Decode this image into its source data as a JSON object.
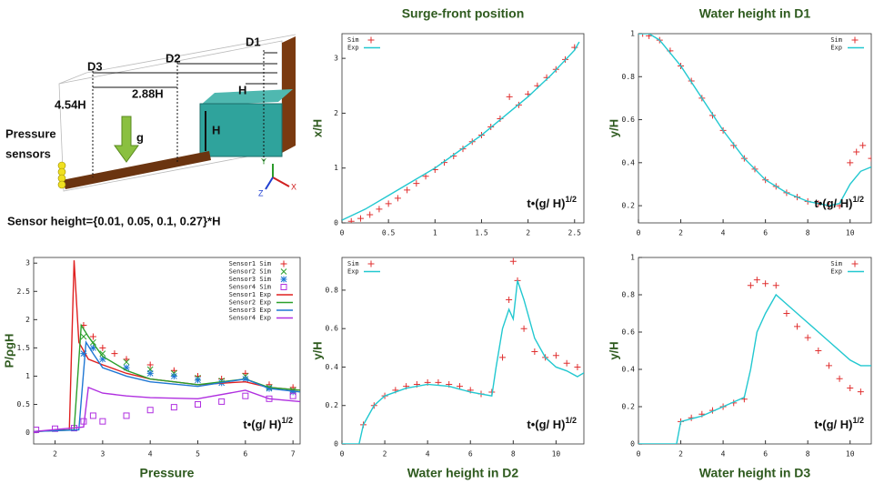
{
  "diagram": {
    "labels": {
      "d1": "D1",
      "d2": "D2",
      "d3": "D3",
      "h_top": "H",
      "d2_dist": "2.88H",
      "d3_dist": "4.54H",
      "g": "g",
      "h_block": "H",
      "sensors": [
        "Pressure",
        "sensors"
      ],
      "axis_y": "Y",
      "axis_z": "Z",
      "axis_x": "X",
      "sensor_height": "Sensor height={0.01, 0.05, 0.1, 0.27}*H"
    }
  },
  "chart_data": [
    {
      "type": "line",
      "title": "Surge-front position",
      "ylabel": "x/H",
      "annotation": "t•(g/ H)",
      "annotation_sup": "1/2",
      "legend": "upper left",
      "xlim": [
        0,
        2.6
      ],
      "ylim": [
        0,
        3.45
      ],
      "xticks": [
        0,
        0.5,
        1,
        1.5,
        2,
        2.5
      ],
      "yticks": [
        0,
        1,
        2,
        3
      ],
      "series": [
        {
          "name": "Sim",
          "color": "#e03030",
          "marker": "+",
          "x": [
            0.1,
            0.2,
            0.3,
            0.4,
            0.5,
            0.6,
            0.7,
            0.8,
            0.9,
            1.0,
            1.1,
            1.2,
            1.3,
            1.4,
            1.5,
            1.6,
            1.7,
            1.8,
            1.9,
            2.0,
            2.1,
            2.2,
            2.3,
            2.4,
            2.5
          ],
          "values": [
            0.03,
            0.08,
            0.15,
            0.25,
            0.35,
            0.45,
            0.6,
            0.72,
            0.85,
            0.97,
            1.1,
            1.22,
            1.35,
            1.48,
            1.6,
            1.75,
            1.9,
            2.3,
            2.15,
            2.35,
            2.5,
            2.65,
            2.8,
            2.98,
            3.2
          ]
        },
        {
          "name": "Exp",
          "color": "#22c8d0",
          "x": [
            0,
            0.25,
            0.5,
            0.75,
            1,
            1.25,
            1.5,
            1.75,
            2,
            2.25,
            2.5,
            2.55
          ],
          "values": [
            0.05,
            0.25,
            0.5,
            0.75,
            1.0,
            1.3,
            1.6,
            1.95,
            2.3,
            2.7,
            3.15,
            3.3
          ]
        }
      ]
    },
    {
      "type": "line",
      "title": "Water height in D1",
      "ylabel": "y/H",
      "annotation": "t•(g/ H)",
      "annotation_sup": "1/2",
      "legend": "upper right",
      "xlim": [
        0,
        11
      ],
      "ylim": [
        0.12,
        1
      ],
      "xticks": [
        0,
        2,
        4,
        6,
        8,
        10
      ],
      "yticks": [
        0.2,
        0.4,
        0.6,
        0.8,
        1
      ],
      "series": [
        {
          "name": "Sim",
          "color": "#e03030",
          "marker": "+",
          "x": [
            0.2,
            0.5,
            1,
            1.5,
            2,
            2.5,
            3,
            3.5,
            4,
            4.5,
            5,
            5.5,
            6,
            6.5,
            7,
            7.5,
            8,
            8.5,
            9,
            9.5,
            10,
            10.3,
            10.6,
            11
          ],
          "values": [
            1,
            0.99,
            0.97,
            0.92,
            0.85,
            0.78,
            0.7,
            0.62,
            0.55,
            0.48,
            0.42,
            0.37,
            0.32,
            0.29,
            0.26,
            0.24,
            0.22,
            0.21,
            0.2,
            0.2,
            0.4,
            0.45,
            0.48,
            0.42
          ]
        },
        {
          "name": "Exp",
          "color": "#22c8d0",
          "x": [
            0,
            0.5,
            1,
            2,
            3,
            4,
            5,
            6,
            7,
            8,
            9,
            9.5,
            10,
            10.5,
            11
          ],
          "values": [
            1,
            1,
            0.97,
            0.85,
            0.7,
            0.55,
            0.42,
            0.32,
            0.26,
            0.22,
            0.2,
            0.21,
            0.3,
            0.36,
            0.38
          ]
        }
      ]
    },
    {
      "type": "line",
      "title": "Pressure",
      "ylabel": "P/ρgH",
      "annotation": "t•(g/ H)",
      "annotation_sup": "1/2",
      "legend": "upper right",
      "xlim": [
        1.55,
        7.15
      ],
      "ylim": [
        -0.2,
        3.1
      ],
      "xticks": [
        2,
        3,
        4,
        5,
        6,
        7
      ],
      "yticks": [
        0,
        0.5,
        1,
        1.5,
        2,
        2.5,
        3
      ],
      "series": [
        {
          "name": "Sensor1 Sim",
          "color": "#e02020",
          "marker": "+",
          "x": [
            2.6,
            2.8,
            3,
            3.25,
            3.5,
            4,
            4.5,
            5,
            5.5,
            6,
            6.5,
            7
          ],
          "values": [
            1.9,
            1.7,
            1.5,
            1.4,
            1.3,
            1.2,
            1.1,
            1.0,
            0.95,
            1.05,
            0.85,
            0.8
          ]
        },
        {
          "name": "Sensor2 Sim",
          "color": "#2ca02c",
          "marker": "x",
          "x": [
            2.6,
            2.8,
            3,
            3.5,
            4,
            4.5,
            5,
            5.5,
            6,
            6.5,
            7
          ],
          "values": [
            1.7,
            1.6,
            1.4,
            1.25,
            1.12,
            1.05,
            0.97,
            0.92,
            1.0,
            0.8,
            0.75
          ]
        },
        {
          "name": "Sensor3 Sim",
          "color": "#1f77d4",
          "marker": "*",
          "x": [
            2.6,
            2.8,
            3,
            3.5,
            4,
            4.5,
            5,
            5.5,
            6,
            6.5,
            7
          ],
          "values": [
            1.4,
            1.5,
            1.3,
            1.15,
            1.05,
            1.0,
            0.93,
            0.88,
            0.95,
            0.78,
            0.72
          ]
        },
        {
          "name": "Sensor4 Sim",
          "color": "#b030e0",
          "marker": "square",
          "x": [
            1.6,
            2,
            2.4,
            2.6,
            2.8,
            3,
            3.5,
            4,
            4.5,
            5,
            5.5,
            6,
            6.5,
            7
          ],
          "values": [
            0.05,
            0.07,
            0.08,
            0.2,
            0.3,
            0.2,
            0.3,
            0.4,
            0.45,
            0.5,
            0.55,
            0.65,
            0.6,
            0.65
          ]
        },
        {
          "name": "Sensor1 Exp",
          "color": "#e02020",
          "x": [
            1.55,
            2.3,
            2.4,
            2.5,
            2.7,
            3,
            3.5,
            4,
            5,
            6,
            6.5,
            7.15
          ],
          "values": [
            0.02,
            0.05,
            3.05,
            1.6,
            1.3,
            1.2,
            1.05,
            0.95,
            0.85,
            0.9,
            0.8,
            0.75
          ]
        },
        {
          "name": "Sensor2 Exp",
          "color": "#2ca02c",
          "x": [
            1.55,
            2.4,
            2.55,
            2.7,
            3,
            3.5,
            4,
            5,
            6,
            6.5,
            7.15
          ],
          "values": [
            0.02,
            0.05,
            1.9,
            1.7,
            1.35,
            1.1,
            0.95,
            0.85,
            0.95,
            0.8,
            0.75
          ]
        },
        {
          "name": "Sensor3 Exp",
          "color": "#1f77d4",
          "x": [
            1.55,
            2.5,
            2.65,
            2.8,
            3,
            3.5,
            4,
            5,
            6,
            6.5,
            7.15
          ],
          "values": [
            0.02,
            0.05,
            1.6,
            1.4,
            1.15,
            1.0,
            0.9,
            0.82,
            0.95,
            0.78,
            0.72
          ]
        },
        {
          "name": "Sensor4 Exp",
          "color": "#b030e0",
          "x": [
            1.55,
            2.6,
            2.7,
            3,
            3.5,
            4,
            5,
            6,
            6.5,
            7.15
          ],
          "values": [
            0.02,
            0.1,
            0.8,
            0.7,
            0.65,
            0.62,
            0.6,
            0.75,
            0.6,
            0.55
          ]
        }
      ]
    },
    {
      "type": "line",
      "title": "Water height in D2",
      "ylabel": "y/H",
      "annotation": "t•(g/ H)",
      "annotation_sup": "1/2",
      "legend": "upper left",
      "xlim": [
        0,
        11.3
      ],
      "ylim": [
        0,
        0.97
      ],
      "xticks": [
        0,
        2,
        4,
        6,
        8,
        10
      ],
      "yticks": [
        0,
        0.2,
        0.4,
        0.6,
        0.8
      ],
      "series": [
        {
          "name": "Sim",
          "color": "#e03030",
          "marker": "+",
          "x": [
            1,
            1.5,
            2,
            2.5,
            3,
            3.5,
            4,
            4.5,
            5,
            5.5,
            6,
            6.5,
            7,
            7.5,
            7.8,
            8,
            8.2,
            8.5,
            9,
            9.5,
            10,
            10.5,
            11
          ],
          "values": [
            0.1,
            0.2,
            0.25,
            0.28,
            0.3,
            0.31,
            0.32,
            0.32,
            0.31,
            0.3,
            0.28,
            0.26,
            0.27,
            0.45,
            0.75,
            0.95,
            0.85,
            0.6,
            0.48,
            0.45,
            0.46,
            0.42,
            0.4
          ]
        },
        {
          "name": "Exp",
          "color": "#22c8d0",
          "x": [
            0,
            0.8,
            1,
            1.5,
            2,
            3,
            4,
            5,
            6,
            7,
            7.2,
            7.5,
            7.8,
            8,
            8.2,
            8.5,
            9,
            9.5,
            10,
            10.5,
            11,
            11.3
          ],
          "values": [
            0,
            0,
            0.1,
            0.2,
            0.25,
            0.29,
            0.31,
            0.3,
            0.27,
            0.25,
            0.4,
            0.6,
            0.7,
            0.65,
            0.85,
            0.75,
            0.55,
            0.45,
            0.4,
            0.38,
            0.35,
            0.37
          ]
        }
      ]
    },
    {
      "type": "line",
      "title": "Water height in D3",
      "ylabel": "y/H",
      "annotation": "t•(g/ H)",
      "annotation_sup": "1/2",
      "legend": "upper right",
      "xlim": [
        0,
        11
      ],
      "ylim": [
        0,
        1
      ],
      "xticks": [
        0,
        2,
        4,
        6,
        8,
        10
      ],
      "yticks": [
        0,
        0.2,
        0.4,
        0.6,
        0.8,
        1
      ],
      "series": [
        {
          "name": "Sim",
          "color": "#e03030",
          "marker": "+",
          "x": [
            2,
            2.5,
            3,
            3.5,
            4,
            4.5,
            5,
            5.3,
            5.6,
            6,
            6.5,
            7,
            7.5,
            8,
            8.5,
            9,
            9.5,
            10,
            10.5
          ],
          "values": [
            0.12,
            0.14,
            0.16,
            0.18,
            0.2,
            0.22,
            0.24,
            0.85,
            0.88,
            0.86,
            0.85,
            0.7,
            0.63,
            0.57,
            0.5,
            0.42,
            0.35,
            0.3,
            0.28
          ]
        },
        {
          "name": "Exp",
          "color": "#22c8d0",
          "x": [
            0,
            1.8,
            2,
            3,
            4,
            5,
            5.3,
            5.6,
            6,
            6.5,
            7,
            7.5,
            8,
            9,
            10,
            10.5,
            11
          ],
          "values": [
            0,
            0,
            0.12,
            0.15,
            0.2,
            0.25,
            0.4,
            0.6,
            0.7,
            0.8,
            0.75,
            0.7,
            0.65,
            0.55,
            0.45,
            0.42,
            0.42
          ]
        }
      ]
    }
  ]
}
